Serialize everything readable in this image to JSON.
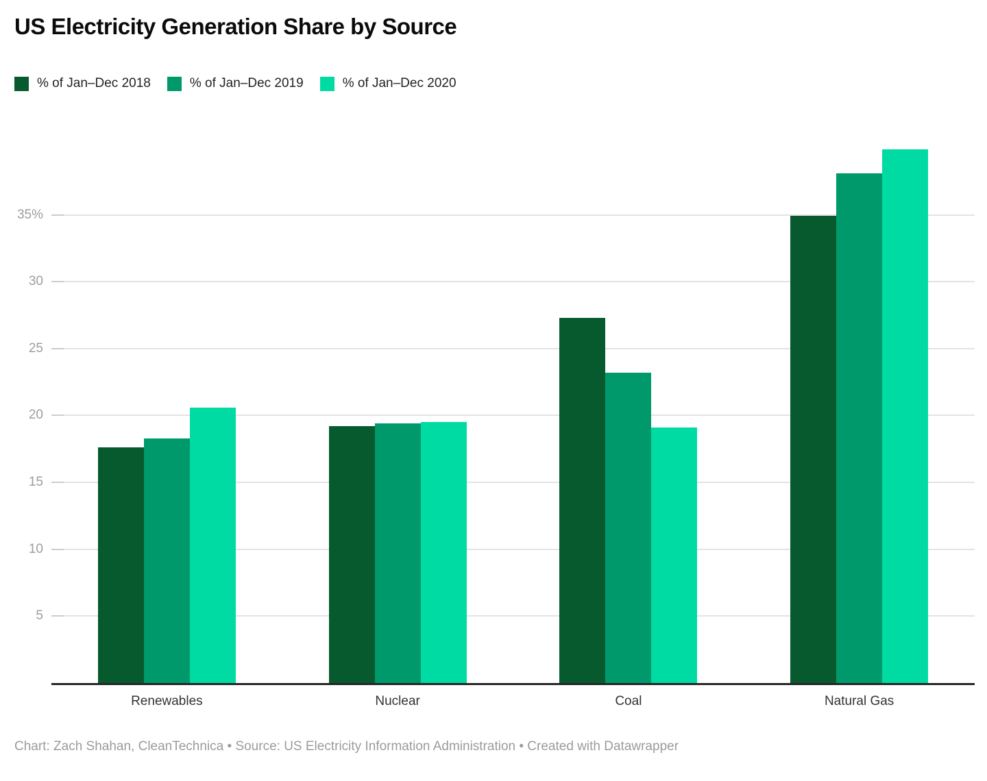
{
  "header": {
    "title": "US Electricity Generation Share by Source"
  },
  "chart_data": {
    "type": "bar",
    "title": "US Electricity Generation Share by Source",
    "categories": [
      "Renewables",
      "Nuclear",
      "Coal",
      "Natural Gas"
    ],
    "series": [
      {
        "name": "% of Jan–Dec 2018",
        "color": "#065a2e",
        "values": [
          17.6,
          19.2,
          27.3,
          34.9
        ]
      },
      {
        "name": "% of Jan–Dec 2019",
        "color": "#00996b",
        "values": [
          18.3,
          19.4,
          23.2,
          38.1
        ]
      },
      {
        "name": "% of Jan–Dec 2020",
        "color": "#00dba3",
        "values": [
          20.6,
          19.5,
          19.1,
          39.9
        ]
      }
    ],
    "xlabel": "",
    "ylabel": "",
    "ylim": [
      0,
      40.3
    ],
    "yticks": [
      5,
      10,
      15,
      20,
      25,
      30,
      35
    ],
    "ytick_labels": [
      "5",
      "10",
      "15",
      "20",
      "25",
      "30",
      "35%"
    ],
    "grid": true,
    "legend_position": "top-left",
    "colors": {
      "gridline": "#e3e3e3",
      "tick": "#cccccc",
      "axis_line": "#262626",
      "ytick_text": "#9d9d9d",
      "xtick_text": "#333333"
    }
  },
  "footer": {
    "text": "Chart: Zach Shahan, CleanTechnica • Source: US Electricity Information Administration • Created with Datawrapper"
  }
}
